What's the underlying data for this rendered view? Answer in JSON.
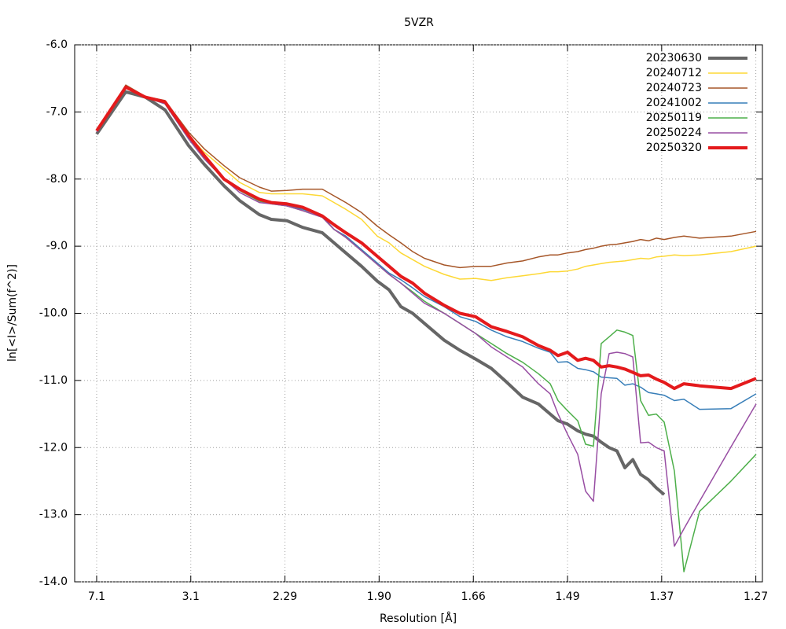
{
  "chart_data": {
    "type": "line",
    "title": "5VZR",
    "xlabel": "Resolution [Å]",
    "ylabel": "ln[<I>/Sum(f^2)]",
    "x": [
      0.02,
      0.0465,
      0.0644,
      0.0823,
      0.1037,
      0.118,
      0.1359,
      0.1502,
      0.1681,
      0.1789,
      0.1932,
      0.2075,
      0.2254,
      0.2361,
      0.2468,
      0.2611,
      0.2754,
      0.2862,
      0.2969,
      0.3076,
      0.3184,
      0.3363,
      0.3506,
      0.3649,
      0.3792,
      0.3935,
      0.4078,
      0.4221,
      0.4328,
      0.44,
      0.4486,
      0.4579,
      0.465,
      0.4722,
      0.4793,
      0.4865,
      0.4936,
      0.5008,
      0.508,
      0.5151,
      0.5223,
      0.5294,
      0.5366,
      0.5459,
      0.5545,
      0.5688,
      0.5974,
      0.6203
    ],
    "series": [
      {
        "name": "20230630",
        "color": "#666666",
        "line_width": 4,
        "values": [
          -7.33,
          -6.7,
          -6.78,
          -6.97,
          -7.5,
          -7.78,
          -8.1,
          -8.32,
          -8.53,
          -8.6,
          -8.62,
          -8.72,
          -8.8,
          -8.95,
          -9.1,
          -9.3,
          -9.52,
          -9.65,
          -9.9,
          -10.0,
          -10.15,
          -10.4,
          -10.55,
          -10.68,
          -10.82,
          -11.03,
          -11.25,
          -11.35,
          -11.5,
          -11.6,
          -11.65,
          -11.75,
          -11.8,
          -11.83,
          -11.92,
          -12.0,
          -12.05,
          -12.3,
          -12.18,
          -12.4,
          -12.48,
          -12.6,
          -12.7,
          null,
          null,
          null,
          null,
          null
        ]
      },
      {
        "name": "20240712",
        "color": "#fdd835",
        "line_width": 1.5,
        "values": [
          -7.28,
          -6.62,
          -6.78,
          -6.85,
          -7.35,
          -7.6,
          -7.85,
          -8.05,
          -8.2,
          -8.22,
          -8.22,
          -8.22,
          -8.25,
          -8.35,
          -8.45,
          -8.6,
          -8.85,
          -8.95,
          -9.1,
          -9.2,
          -9.3,
          -9.42,
          -9.49,
          -9.48,
          -9.51,
          -9.47,
          -9.44,
          -9.41,
          -9.38,
          -9.38,
          -9.37,
          -9.34,
          -9.3,
          -9.28,
          -9.26,
          -9.24,
          -9.23,
          -9.22,
          -9.2,
          -9.18,
          -9.19,
          -9.16,
          -9.15,
          -9.13,
          -9.14,
          -9.13,
          -9.08,
          -9.0
        ]
      },
      {
        "name": "20240723",
        "color": "#a65628",
        "line_width": 1.5,
        "values": [
          -7.3,
          -6.6,
          -6.77,
          -6.83,
          -7.3,
          -7.55,
          -7.8,
          -7.98,
          -8.12,
          -8.18,
          -8.17,
          -8.15,
          -8.15,
          -8.25,
          -8.35,
          -8.5,
          -8.7,
          -8.83,
          -8.95,
          -9.08,
          -9.18,
          -9.28,
          -9.32,
          -9.3,
          -9.3,
          -9.25,
          -9.22,
          -9.16,
          -9.13,
          -9.13,
          -9.1,
          -9.08,
          -9.05,
          -9.03,
          -9.0,
          -8.98,
          -8.97,
          -8.95,
          -8.93,
          -8.9,
          -8.92,
          -8.88,
          -8.9,
          -8.87,
          -8.85,
          -8.88,
          -8.85,
          -8.78
        ]
      },
      {
        "name": "20241002",
        "color": "#377eb8",
        "line_width": 1.5,
        "values": [
          -7.3,
          -6.63,
          -6.78,
          -6.88,
          -7.4,
          -7.7,
          -8.0,
          -8.15,
          -8.3,
          -8.35,
          -8.4,
          -8.45,
          -8.55,
          -8.75,
          -8.85,
          -9.05,
          -9.25,
          -9.4,
          -9.5,
          -9.62,
          -9.75,
          -9.9,
          -10.05,
          -10.12,
          -10.25,
          -10.35,
          -10.42,
          -10.52,
          -10.58,
          -10.73,
          -10.72,
          -10.82,
          -10.84,
          -10.87,
          -10.95,
          -10.96,
          -10.97,
          -11.07,
          -11.05,
          -11.1,
          -11.18,
          -11.2,
          -11.22,
          -11.3,
          -11.28,
          -11.43,
          -11.42,
          -11.2
        ]
      },
      {
        "name": "20250119",
        "color": "#4daf4a",
        "line_width": 1.5,
        "values": [
          -7.3,
          -6.63,
          -6.78,
          -6.88,
          -7.4,
          -7.7,
          -8.0,
          -8.17,
          -8.33,
          -8.37,
          -8.4,
          -8.47,
          -8.57,
          -8.75,
          -8.87,
          -9.07,
          -9.27,
          -9.42,
          -9.55,
          -9.68,
          -9.82,
          -10.0,
          -10.15,
          -10.3,
          -10.45,
          -10.6,
          -10.73,
          -10.9,
          -11.05,
          -11.3,
          -11.45,
          -11.6,
          -11.95,
          -11.98,
          -10.45,
          -10.35,
          -10.25,
          -10.28,
          -10.33,
          -11.3,
          -11.52,
          -11.5,
          -11.62,
          -12.35,
          -13.85,
          -12.95,
          -12.5,
          -12.1
        ]
      },
      {
        "name": "20250224",
        "color": "#984ea3",
        "line_width": 1.5,
        "values": [
          -7.3,
          -6.63,
          -6.78,
          -6.88,
          -7.4,
          -7.7,
          -8.0,
          -8.2,
          -8.35,
          -8.37,
          -8.4,
          -8.47,
          -8.57,
          -8.75,
          -8.87,
          -9.07,
          -9.27,
          -9.42,
          -9.55,
          -9.7,
          -9.85,
          -10.0,
          -10.15,
          -10.3,
          -10.5,
          -10.65,
          -10.8,
          -11.05,
          -11.2,
          -11.5,
          -11.8,
          -12.1,
          -12.65,
          -12.8,
          -11.2,
          -10.6,
          -10.58,
          -10.6,
          -10.65,
          -11.93,
          -11.92,
          -12.0,
          -12.05,
          -13.47,
          -13.21,
          -12.8,
          -11.99,
          -11.35
        ]
      },
      {
        "name": "20250320",
        "color": "#e41a1c",
        "line_width": 4,
        "values": [
          -7.28,
          -6.63,
          -6.78,
          -6.85,
          -7.35,
          -7.65,
          -8.0,
          -8.15,
          -8.3,
          -8.35,
          -8.37,
          -8.42,
          -8.55,
          -8.68,
          -8.8,
          -8.95,
          -9.15,
          -9.3,
          -9.45,
          -9.55,
          -9.7,
          -9.88,
          -10.0,
          -10.05,
          -10.2,
          -10.27,
          -10.35,
          -10.48,
          -10.55,
          -10.63,
          -10.58,
          -10.7,
          -10.67,
          -10.7,
          -10.8,
          -10.78,
          -10.8,
          -10.83,
          -10.88,
          -10.93,
          -10.92,
          -10.98,
          -11.03,
          -11.12,
          -11.05,
          -11.08,
          -11.12,
          -10.97
        ]
      }
    ],
    "xlim": [
      0,
      0.626
    ],
    "xticks": [
      {
        "value": 0.02,
        "label": "7.1"
      },
      {
        "value": 0.1057,
        "label": "3.1"
      },
      {
        "value": 0.1914,
        "label": "2.29"
      },
      {
        "value": 0.2771,
        "label": "1.90"
      },
      {
        "value": 0.3629,
        "label": "1.66"
      },
      {
        "value": 0.4486,
        "label": "1.49"
      },
      {
        "value": 0.5343,
        "label": "1.37"
      },
      {
        "value": 0.62,
        "label": "1.27"
      }
    ],
    "ylim": [
      -14,
      -6
    ],
    "yticks": [
      {
        "value": -6,
        "label": "-6.0"
      },
      {
        "value": -7,
        "label": "-7.0"
      },
      {
        "value": -8,
        "label": "-8.0"
      },
      {
        "value": -9,
        "label": "-9.0"
      },
      {
        "value": -10,
        "label": "-10.0"
      },
      {
        "value": -11,
        "label": "-11.0"
      },
      {
        "value": -12,
        "label": "-12.0"
      },
      {
        "value": -13,
        "label": "-13.0"
      },
      {
        "value": -14,
        "label": "-14.0"
      }
    ],
    "grid": true,
    "legend": "top-right"
  }
}
